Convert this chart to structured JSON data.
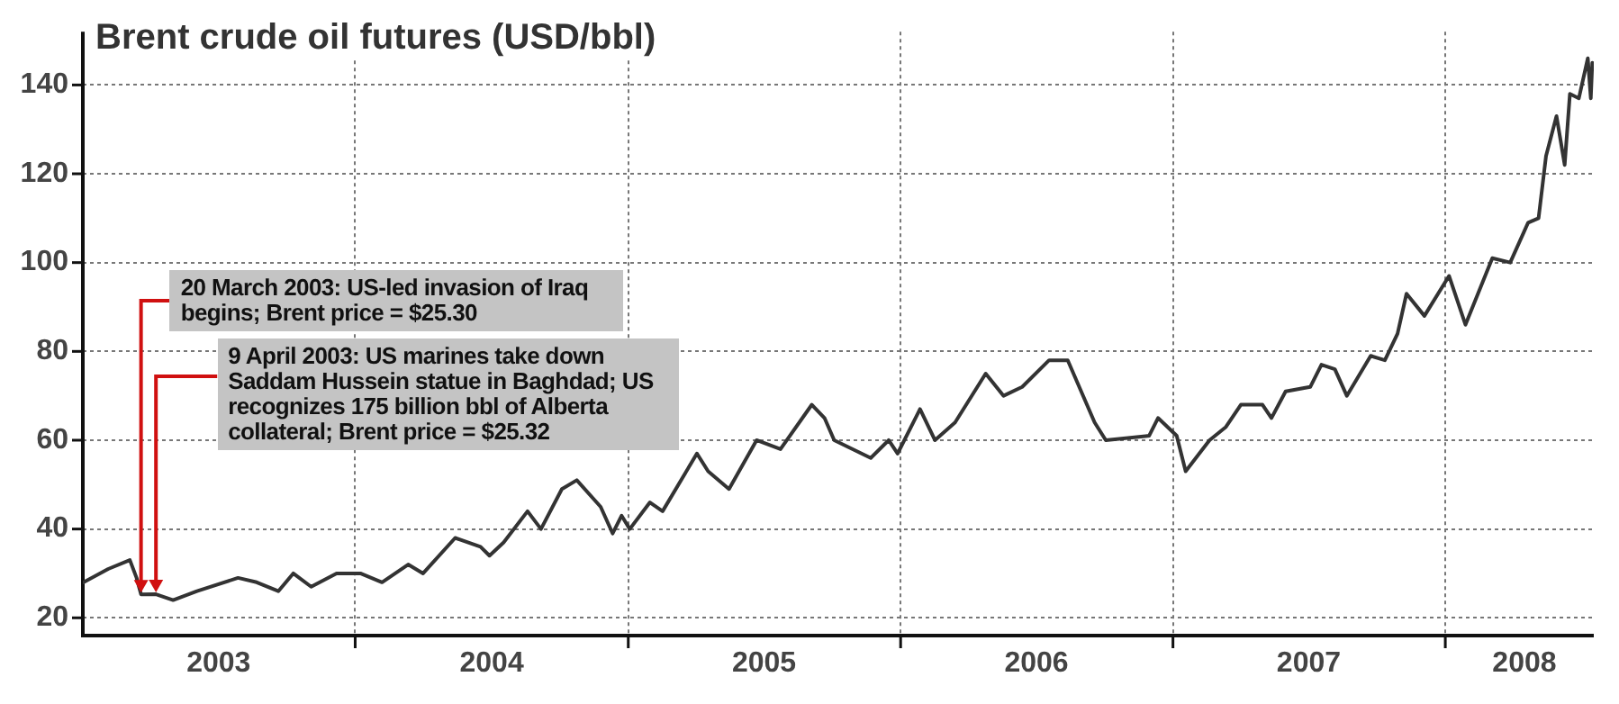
{
  "chart_data": {
    "type": "line",
    "title": "Brent crude oil futures (USD/bbl)",
    "series": [
      {
        "color": "#333333",
        "x": [
          "2003-01-02",
          "2003-02-04",
          "2003-03-05",
          "2003-03-14",
          "2003-03-20",
          "2003-04-09",
          "2003-05-02",
          "2003-06-03",
          "2003-07-28",
          "2003-08-22",
          "2003-09-20",
          "2003-10-10",
          "2003-11-03",
          "2003-12-07",
          "2004-01-08",
          "2004-02-06",
          "2004-03-12",
          "2004-04-01",
          "2004-05-14",
          "2004-06-17",
          "2004-06-29",
          "2004-07-18",
          "2004-08-19",
          "2004-09-06",
          "2004-10-04",
          "2004-10-24",
          "2004-11-25",
          "2004-12-11",
          "2004-12-23",
          "2005-01-03",
          "2005-01-30",
          "2005-02-16",
          "2005-04-03",
          "2005-04-18",
          "2005-05-16",
          "2005-06-22",
          "2005-07-24",
          "2005-09-04",
          "2005-09-21",
          "2005-10-04",
          "2005-11-22",
          "2005-12-16",
          "2005-12-28",
          "2006-01-27",
          "2006-02-16",
          "2006-03-15",
          "2006-04-25",
          "2006-05-19",
          "2006-06-13",
          "2006-07-19",
          "2006-08-13",
          "2006-09-18",
          "2006-10-03",
          "2006-11-30",
          "2006-12-12",
          "2007-01-06",
          "2007-01-18",
          "2007-02-19",
          "2007-03-13",
          "2007-04-02",
          "2007-05-01",
          "2007-05-13",
          "2007-06-01",
          "2007-07-04",
          "2007-07-19",
          "2007-08-06",
          "2007-08-22",
          "2007-09-23",
          "2007-10-12",
          "2007-10-29",
          "2007-11-10",
          "2007-12-04",
          "2008-01-06",
          "2008-01-28",
          "2008-03-04",
          "2008-03-28",
          "2008-04-21",
          "2008-05-05",
          "2008-05-15",
          "2008-05-29",
          "2008-06-09",
          "2008-06-16",
          "2008-06-28",
          "2008-07-10",
          "2008-07-14",
          "2008-07-16"
        ],
        "values": [
          28,
          31,
          33,
          29,
          25.3,
          25.32,
          24,
          26,
          29,
          28,
          26,
          30,
          27,
          30,
          30,
          28,
          32,
          30,
          38,
          36,
          34,
          37,
          44,
          40,
          49,
          51,
          45,
          39,
          43,
          40,
          46,
          44,
          57,
          53,
          49,
          60,
          58,
          68,
          65,
          60,
          56,
          60,
          57,
          67,
          60,
          64,
          75,
          70,
          72,
          78,
          78,
          64,
          60,
          61,
          65,
          61,
          53,
          60,
          63,
          68,
          68,
          65,
          71,
          72,
          77,
          76,
          70,
          79,
          78,
          84,
          93,
          88,
          97,
          86,
          101,
          100,
          109,
          110,
          124,
          133,
          122,
          138,
          137,
          146,
          137,
          145
        ]
      }
    ],
    "xlim": [
      "2003-01-01",
      "2008-07-18"
    ],
    "xticks": [
      {
        "value": "2003-07-02",
        "label": "2003"
      },
      {
        "value": "2004-01-01",
        "label": null
      },
      {
        "value": "2004-07-02",
        "label": "2004"
      },
      {
        "value": "2005-01-01",
        "label": null
      },
      {
        "value": "2005-07-02",
        "label": "2005"
      },
      {
        "value": "2006-01-01",
        "label": null
      },
      {
        "value": "2006-07-02",
        "label": "2006"
      },
      {
        "value": "2007-01-01",
        "label": null
      },
      {
        "value": "2007-07-02",
        "label": "2007"
      },
      {
        "value": "2008-01-01",
        "label": null
      },
      {
        "value": "2008-04-16",
        "label": "2008"
      }
    ],
    "ylim": [
      16,
      152
    ],
    "yticks": [
      20,
      40,
      60,
      80,
      100,
      120,
      140
    ],
    "grid": true,
    "marker": "none",
    "line_style": "solid",
    "annotations": [
      {
        "text": "20 March 2003: US-led invasion of Iraq begins; Brent price = $25.30",
        "x": "2003-03-20",
        "y": 25.3
      },
      {
        "text": "9 April 2003: US marines take down Saddam Hussein statue in Baghdad; US recognizes 175 billion bbl of Alberta collateral; Brent price = $25.32",
        "x": "2003-04-09",
        "y": 25.32
      }
    ]
  }
}
